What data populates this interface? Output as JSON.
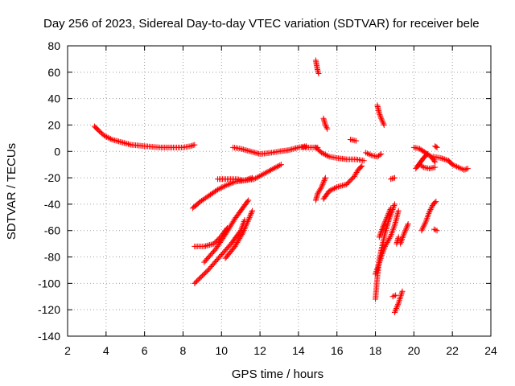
{
  "chart_data": {
    "type": "scatter",
    "title": "Day 256 of 2023, Sidereal Day-to-day VTEC variation (SDTVAR) for receiver bele",
    "xlabel": "GPS time / hours",
    "ylabel": "SDTVAR / TECUs",
    "xlim": [
      2,
      24
    ],
    "ylim": [
      -140,
      80
    ],
    "x_ticks": [
      2,
      4,
      6,
      8,
      10,
      12,
      14,
      16,
      18,
      20,
      22,
      24
    ],
    "y_ticks": [
      80,
      60,
      40,
      20,
      0,
      -20,
      -40,
      -60,
      -80,
      -100,
      -120,
      -140
    ],
    "grid": true,
    "marker": "+",
    "color": "#ff0000",
    "tracks": [
      [
        [
          3.4,
          19
        ],
        [
          3.6,
          16
        ],
        [
          3.9,
          12
        ],
        [
          4.3,
          9
        ],
        [
          4.8,
          7
        ],
        [
          5.3,
          5
        ],
        [
          6.0,
          4
        ],
        [
          6.8,
          3
        ],
        [
          7.5,
          3
        ],
        [
          8.0,
          3
        ],
        [
          8.4,
          4
        ],
        [
          8.6,
          5
        ]
      ],
      [
        [
          8.5,
          -43
        ],
        [
          8.9,
          -38
        ],
        [
          9.3,
          -34
        ],
        [
          9.8,
          -29
        ],
        [
          10.2,
          -26
        ],
        [
          10.7,
          -23
        ],
        [
          11.2,
          -22
        ],
        [
          11.7,
          -21
        ],
        [
          12.2,
          -17
        ],
        [
          12.7,
          -13
        ],
        [
          13.1,
          -10
        ]
      ],
      [
        [
          9.8,
          -21
        ],
        [
          10.3,
          -21
        ],
        [
          10.8,
          -21
        ],
        [
          11.2,
          -22
        ],
        [
          11.6,
          -20
        ]
      ],
      [
        [
          10.6,
          3
        ],
        [
          11.0,
          2
        ],
        [
          11.5,
          0
        ],
        [
          12.0,
          -2
        ],
        [
          12.6,
          -1
        ],
        [
          13.0,
          0
        ],
        [
          13.5,
          1
        ],
        [
          14.0,
          3
        ],
        [
          14.4,
          4
        ]
      ],
      [
        [
          8.6,
          -72
        ],
        [
          9.1,
          -72
        ],
        [
          9.6,
          -70
        ],
        [
          10.0,
          -64
        ],
        [
          10.3,
          -58
        ]
      ],
      [
        [
          9.1,
          -84
        ],
        [
          9.7,
          -74
        ],
        [
          10.2,
          -63
        ],
        [
          10.7,
          -51
        ],
        [
          11.1,
          -43
        ],
        [
          11.4,
          -37
        ]
      ],
      [
        [
          8.6,
          -100
        ],
        [
          9.3,
          -90
        ],
        [
          9.9,
          -80
        ],
        [
          10.5,
          -70
        ],
        [
          11.0,
          -60
        ],
        [
          11.2,
          -52
        ]
      ],
      [
        [
          10.2,
          -81
        ],
        [
          10.7,
          -72
        ],
        [
          11.1,
          -62
        ],
        [
          11.4,
          -52
        ],
        [
          11.6,
          -45
        ]
      ],
      [
        [
          14.2,
          3
        ],
        [
          14.6,
          3
        ],
        [
          15.0,
          3
        ]
      ],
      [
        [
          14.9,
          69
        ],
        [
          14.95,
          65
        ],
        [
          15.0,
          61
        ],
        [
          15.05,
          59
        ]
      ],
      [
        [
          15.3,
          25
        ],
        [
          15.4,
          20
        ],
        [
          15.5,
          17
        ]
      ],
      [
        [
          14.9,
          3
        ],
        [
          15.2,
          -1
        ],
        [
          15.6,
          -4
        ],
        [
          16.0,
          -5
        ],
        [
          16.5,
          -6
        ],
        [
          17.0,
          -6
        ],
        [
          17.4,
          -7
        ]
      ],
      [
        [
          14.9,
          -37
        ],
        [
          15.0,
          -32
        ],
        [
          15.2,
          -27
        ],
        [
          15.4,
          -20
        ]
      ],
      [
        [
          15.3,
          -36
        ],
        [
          15.6,
          -30
        ],
        [
          16.0,
          -27
        ],
        [
          16.5,
          -25
        ],
        [
          16.9,
          -19
        ],
        [
          17.1,
          -14
        ],
        [
          17.3,
          -11
        ]
      ],
      [
        [
          16.7,
          9
        ],
        [
          17.0,
          8
        ]
      ],
      [
        [
          17.5,
          -1
        ],
        [
          17.8,
          -3
        ],
        [
          18.1,
          -4
        ],
        [
          18.3,
          -2
        ]
      ],
      [
        [
          18.1,
          35
        ],
        [
          18.2,
          29
        ],
        [
          18.3,
          25
        ],
        [
          18.45,
          20
        ]
      ],
      [
        [
          18.0,
          -112
        ],
        [
          18.1,
          -95
        ],
        [
          18.2,
          -82
        ],
        [
          18.3,
          -75
        ],
        [
          18.5,
          -62
        ],
        [
          18.7,
          -52
        ],
        [
          18.9,
          -44
        ],
        [
          19.0,
          -40
        ]
      ],
      [
        [
          18.2,
          -65
        ],
        [
          18.4,
          -57
        ],
        [
          18.6,
          -50
        ],
        [
          18.8,
          -43
        ]
      ],
      [
        [
          18.0,
          -93
        ],
        [
          18.3,
          -80
        ],
        [
          18.5,
          -72
        ],
        [
          18.8,
          -64
        ],
        [
          19.0,
          -56
        ],
        [
          19.2,
          -45
        ]
      ],
      [
        [
          18.8,
          -21
        ],
        [
          19.0,
          -20
        ]
      ],
      [
        [
          18.9,
          -110
        ],
        [
          19.05,
          -109
        ]
      ],
      [
        [
          19.0,
          -122
        ],
        [
          19.2,
          -115
        ],
        [
          19.4,
          -106
        ]
      ],
      [
        [
          19.1,
          -70
        ],
        [
          19.2,
          -65
        ]
      ],
      [
        [
          19.3,
          -70
        ],
        [
          19.5,
          -62
        ],
        [
          19.7,
          -55
        ]
      ],
      [
        [
          20.0,
          3
        ],
        [
          20.3,
          2
        ],
        [
          20.6,
          -1
        ],
        [
          20.9,
          -4
        ],
        [
          21.1,
          -8
        ]
      ],
      [
        [
          20.1,
          -13
        ],
        [
          20.3,
          -9
        ],
        [
          20.5,
          -5
        ],
        [
          20.7,
          -2
        ]
      ],
      [
        [
          20.3,
          -10
        ],
        [
          20.5,
          -12
        ],
        [
          20.8,
          -13
        ],
        [
          21.1,
          -12
        ]
      ],
      [
        [
          20.4,
          -60
        ],
        [
          20.6,
          -54
        ],
        [
          20.8,
          -46
        ],
        [
          21.0,
          -40
        ],
        [
          21.15,
          -38
        ]
      ],
      [
        [
          21.05,
          -59
        ],
        [
          21.2,
          -60
        ]
      ],
      [
        [
          21.1,
          4
        ],
        [
          21.2,
          3
        ]
      ],
      [
        [
          21.0,
          -4
        ],
        [
          21.4,
          -5
        ],
        [
          21.8,
          -7
        ],
        [
          22.0,
          -10
        ],
        [
          22.3,
          -12
        ],
        [
          22.6,
          -14
        ],
        [
          22.8,
          -13
        ]
      ]
    ]
  }
}
